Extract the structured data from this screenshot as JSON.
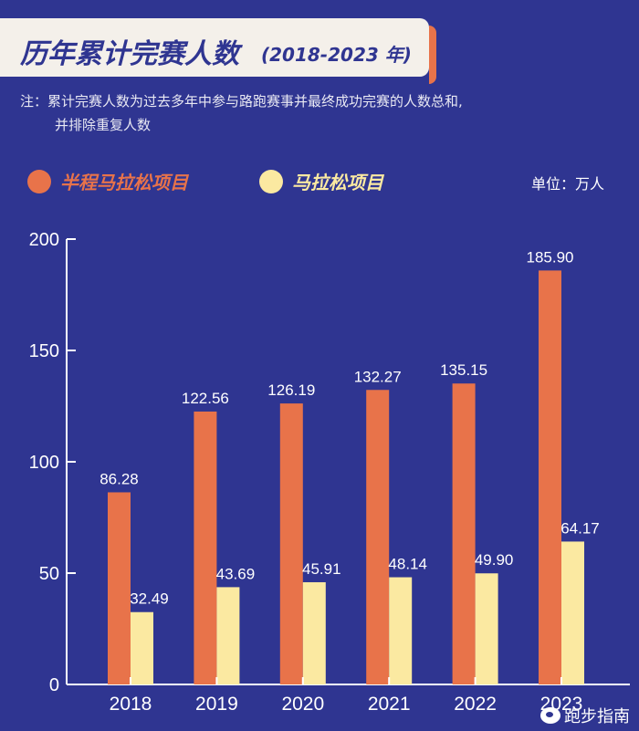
{
  "header": {
    "title": "历年累计完赛人数",
    "subtitle": "(2018-2023 年)"
  },
  "note": {
    "line1": "注：累计完赛人数为过去多年中参与路跑赛事并最终成功完赛的人数总和,",
    "line2": "并排除重复人数"
  },
  "unit": "单位：万人",
  "credit": "跑步指南",
  "colors": {
    "background": "#2f3591",
    "half_marathon": "#e8734a",
    "marathon": "#fbe9a1",
    "axis": "#ffffff",
    "title_box": "#f4f0ea"
  },
  "chart_data": {
    "type": "bar",
    "categories": [
      "2018",
      "2019",
      "2020",
      "2021",
      "2022",
      "2023"
    ],
    "series": [
      {
        "name": "半程马拉松项目",
        "values": [
          86.28,
          122.56,
          126.19,
          132.27,
          135.15,
          185.9
        ],
        "labels": [
          "86.28",
          "122.56",
          "126.19",
          "132.27",
          "135.15",
          "185.90"
        ],
        "color": "#e8734a"
      },
      {
        "name": "马拉松项目",
        "values": [
          32.49,
          43.69,
          45.91,
          48.14,
          49.9,
          64.17
        ],
        "labels": [
          "32.49",
          "43.69",
          "45.91",
          "48.14",
          "49.90",
          "64.17"
        ],
        "color": "#fbe9a1"
      }
    ],
    "yticks": [
      "0",
      "50",
      "100",
      "150",
      "200"
    ],
    "ylim": [
      0,
      200
    ],
    "grid": false,
    "legend": "top-left"
  }
}
